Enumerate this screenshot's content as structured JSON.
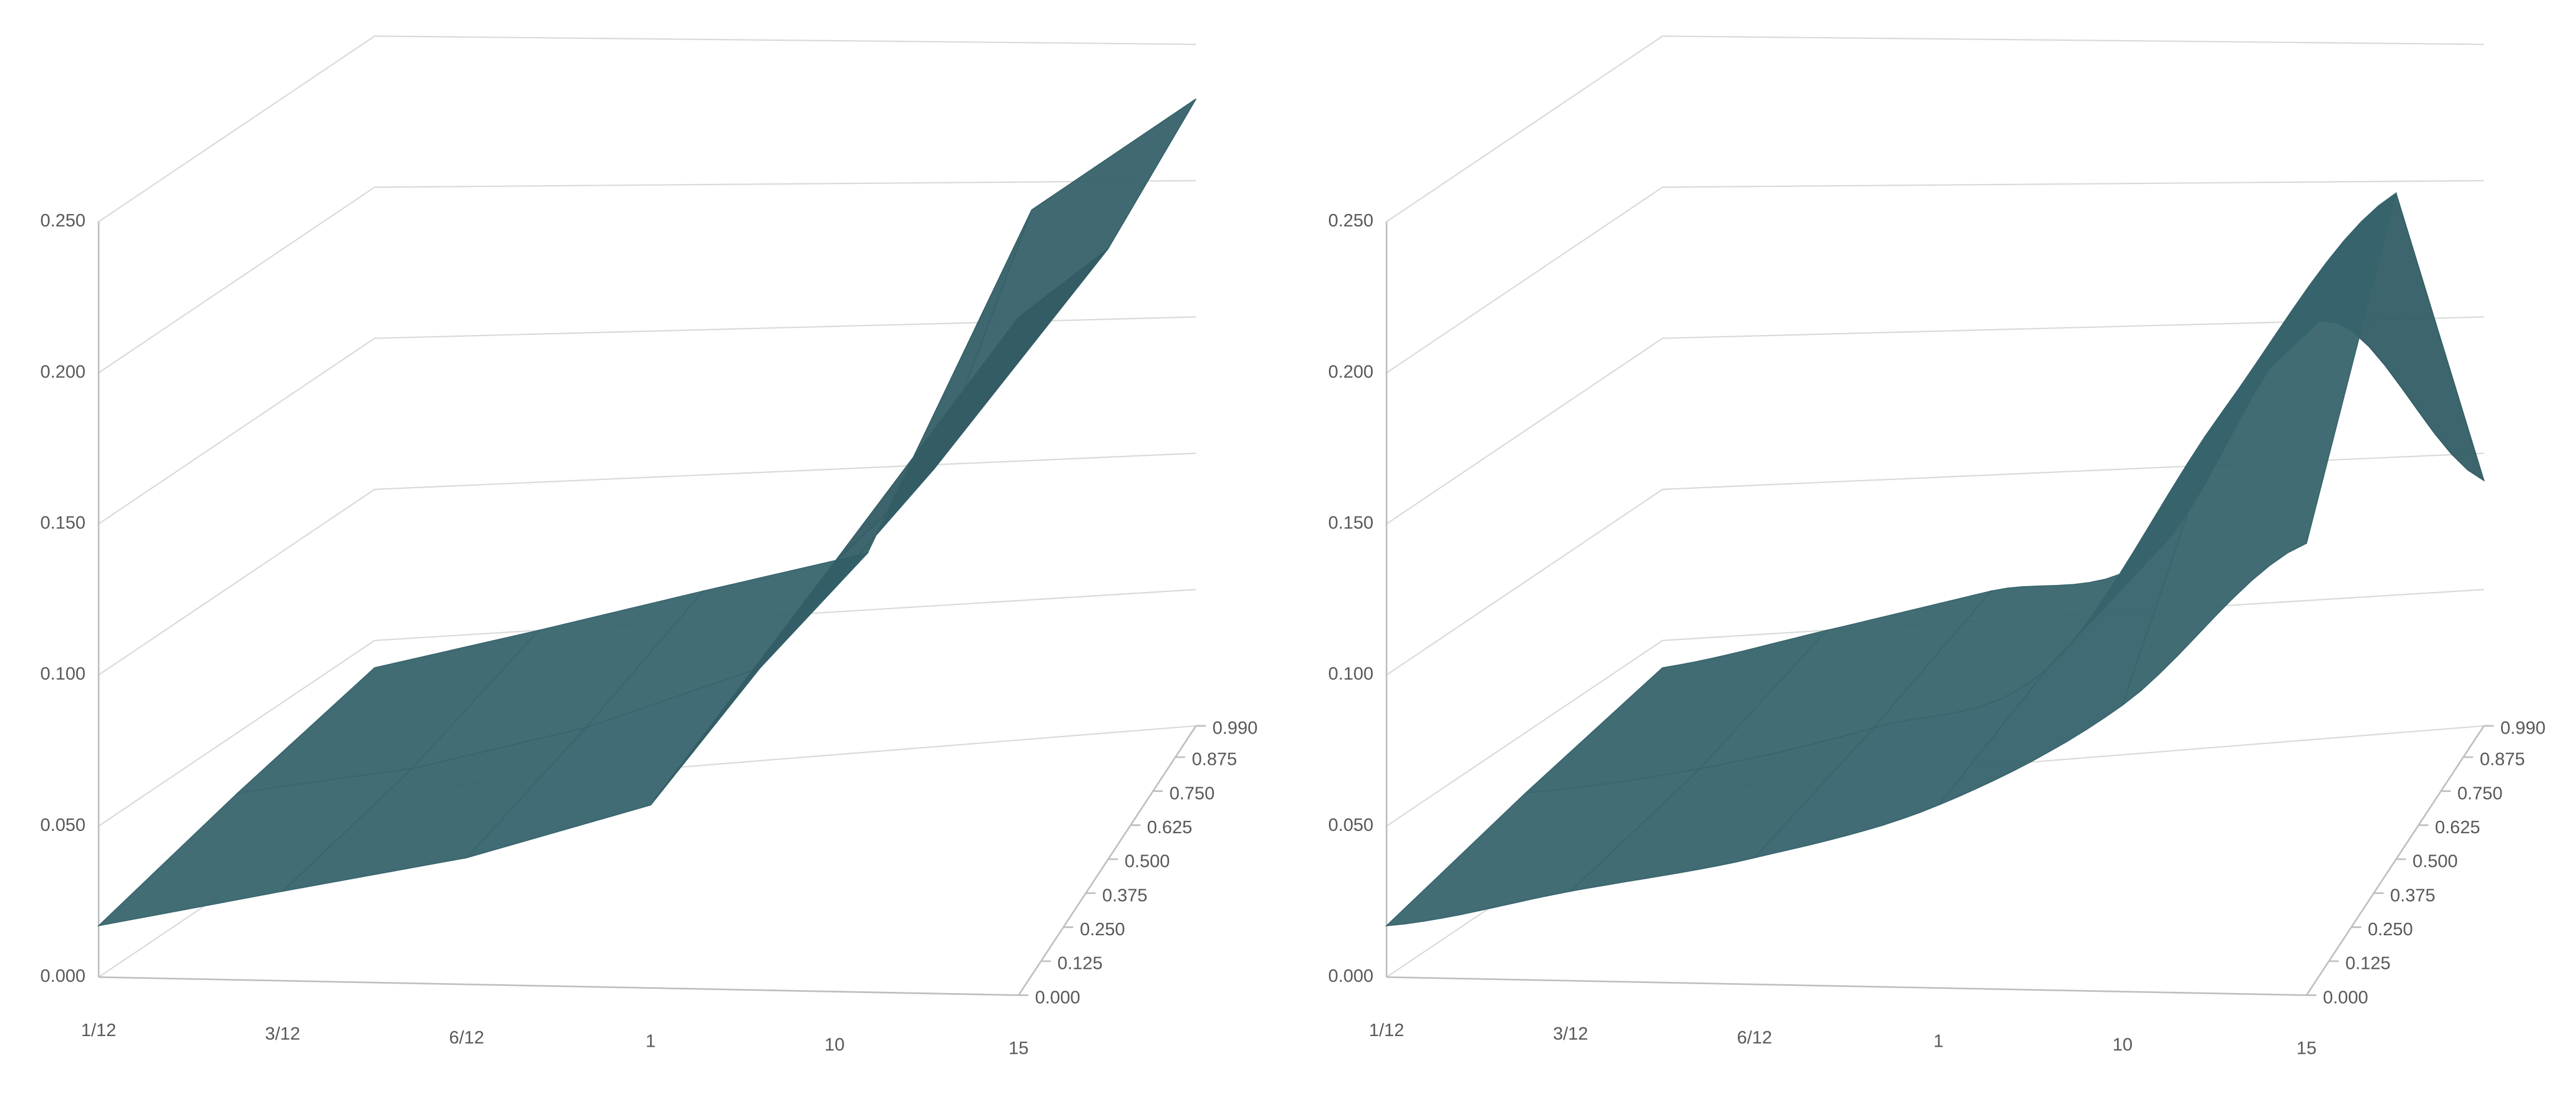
{
  "chart_data": [
    {
      "type": "surface",
      "smooth": false,
      "color": "#36626b",
      "categories": [
        "1/12",
        "3/12",
        "6/12",
        "1",
        "10",
        "15"
      ],
      "y": [
        0,
        0.5,
        0.99
      ],
      "values": [
        [
          0.017,
          0.03,
          0.043,
          0.063,
          0.15,
          0.24
        ],
        [
          0.03,
          0.037,
          0.05,
          0.07,
          0.14,
          0.22
        ],
        [
          0.041,
          0.05,
          0.06,
          0.07,
          0.19,
          0.23
        ]
      ],
      "zlim": [
        0,
        0.25
      ],
      "zticks": [
        {
          "value": 0,
          "label": "0.000"
        },
        {
          "value": 0.05,
          "label": "0.050"
        },
        {
          "value": 0.1,
          "label": "0.100"
        },
        {
          "value": 0.15,
          "label": "0.150"
        },
        {
          "value": 0.2,
          "label": "0.200"
        },
        {
          "value": 0.25,
          "label": "0.250"
        }
      ],
      "ylim": [
        0,
        0.99
      ],
      "yticks": [
        {
          "value": 0,
          "label": "0.000"
        },
        {
          "value": 0.125,
          "label": "0.125"
        },
        {
          "value": 0.25,
          "label": "0.250"
        },
        {
          "value": 0.375,
          "label": "0.375"
        },
        {
          "value": 0.5,
          "label": "0.500"
        },
        {
          "value": 0.625,
          "label": "0.625"
        },
        {
          "value": 0.75,
          "label": "0.750"
        },
        {
          "value": 0.875,
          "label": "0.875"
        },
        {
          "value": 0.99,
          "label": "0.990"
        }
      ]
    },
    {
      "type": "surface",
      "smooth": true,
      "color": "#36626b",
      "categories": [
        "1/12",
        "3/12",
        "6/12",
        "1",
        "10",
        "15"
      ],
      "y": [
        0,
        0.5,
        0.99
      ],
      "values": [
        [
          0.017,
          0.03,
          0.043,
          0.063,
          0.1,
          0.16
        ],
        [
          0.03,
          0.037,
          0.05,
          0.07,
          0.16,
          0.24
        ],
        [
          0.041,
          0.05,
          0.06,
          0.07,
          0.15,
          0.09
        ]
      ],
      "zlim": [
        0,
        0.25
      ],
      "zticks": [
        {
          "value": 0,
          "label": "0.000"
        },
        {
          "value": 0.05,
          "label": "0.050"
        },
        {
          "value": 0.1,
          "label": "0.100"
        },
        {
          "value": 0.15,
          "label": "0.150"
        },
        {
          "value": 0.2,
          "label": "0.200"
        },
        {
          "value": 0.25,
          "label": "0.250"
        }
      ],
      "ylim": [
        0,
        0.99
      ],
      "yticks": [
        {
          "value": 0,
          "label": "0.000"
        },
        {
          "value": 0.125,
          "label": "0.125"
        },
        {
          "value": 0.25,
          "label": "0.250"
        },
        {
          "value": 0.375,
          "label": "0.375"
        },
        {
          "value": 0.5,
          "label": "0.500"
        },
        {
          "value": 0.625,
          "label": "0.625"
        },
        {
          "value": 0.75,
          "label": "0.750"
        },
        {
          "value": 0.875,
          "label": "0.875"
        },
        {
          "value": 0.99,
          "label": "0.990"
        }
      ]
    }
  ]
}
